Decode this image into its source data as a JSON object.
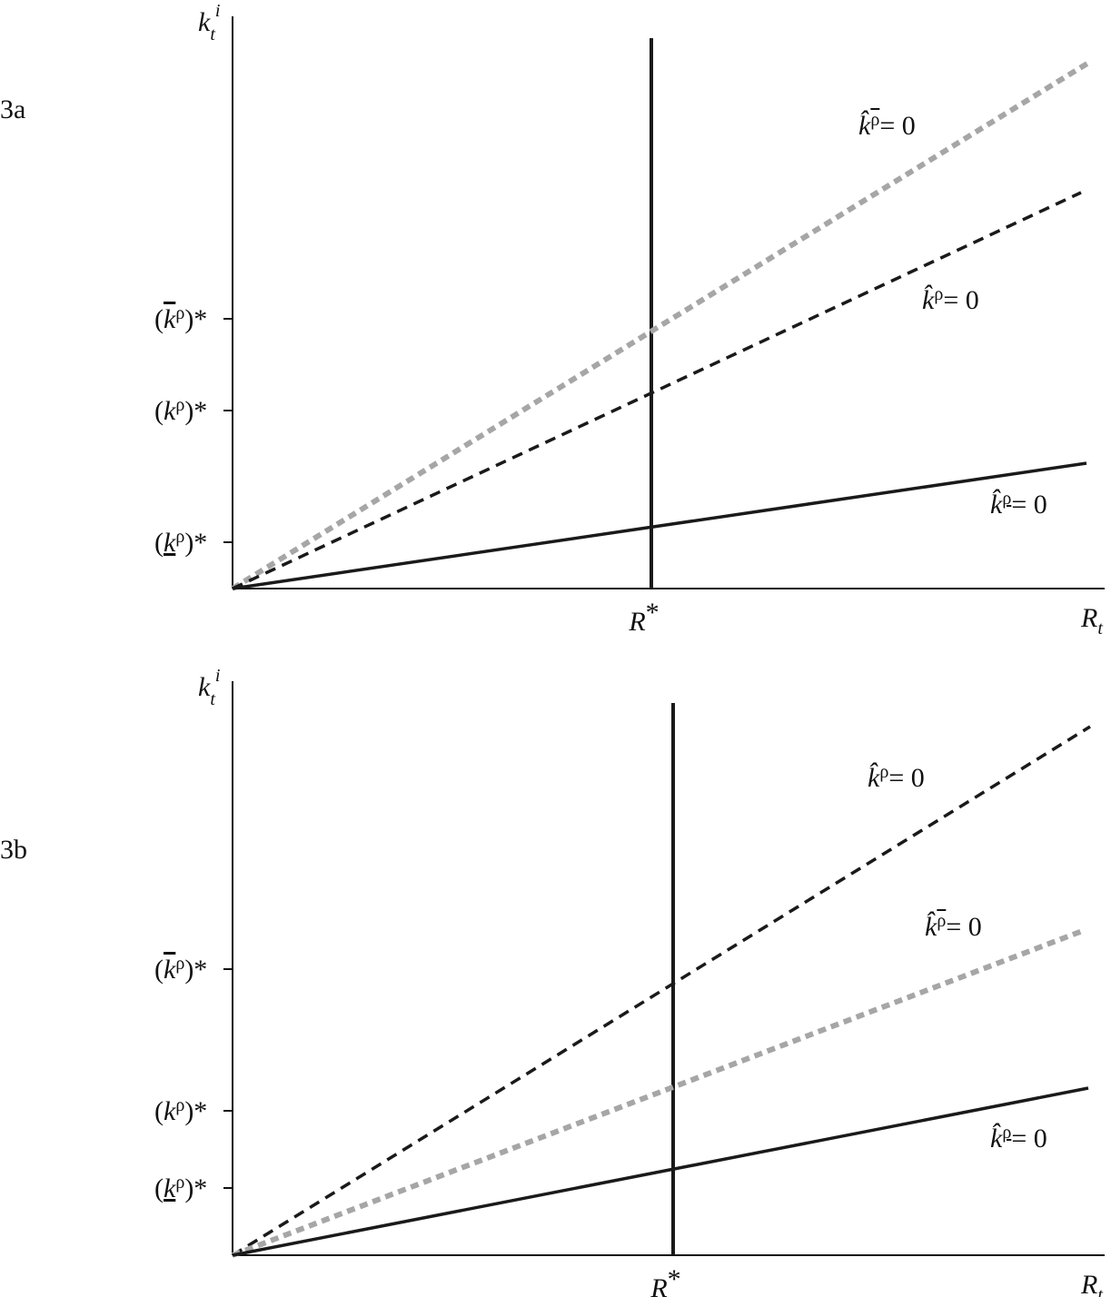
{
  "panels": [
    {
      "label": "3a",
      "y_axis_label": {
        "base": "k",
        "sub": "t",
        "sup": "i"
      },
      "x_axis_label": {
        "base": "R",
        "sub": "t"
      },
      "r_star": {
        "base": "R",
        "sup": "*"
      },
      "tick_labels": [
        {
          "open": "(",
          "base": "k",
          "sup": "ρ",
          "close": ")*"
        },
        {
          "open": "(",
          "base": "k",
          "sup": "ρ",
          "close": ")*"
        },
        {
          "open": "(",
          "base": "k",
          "sup": "ρ",
          "close": ")*"
        }
      ],
      "curve_labels": [
        {
          "base": "k̂",
          "sup": "ρ",
          "eq": "= 0"
        },
        {
          "base": "k̂",
          "sup": "ρ",
          "eq": "= 0"
        },
        {
          "base": "k̂",
          "sup": "ρ",
          "eq": "= 0"
        }
      ]
    },
    {
      "label": "3b",
      "y_axis_label": {
        "base": "k",
        "sub": "t",
        "sup": "i"
      },
      "x_axis_label": {
        "base": "R",
        "sub": "t"
      },
      "r_star": {
        "base": "R",
        "sup": "*"
      },
      "tick_labels": [
        {
          "open": "(",
          "base": "k",
          "sup": "ρ",
          "close": ")*"
        },
        {
          "open": "(",
          "base": "k",
          "sup": "ρ",
          "close": ")*"
        },
        {
          "open": "(",
          "base": "k",
          "sup": "ρ",
          "close": ")*"
        }
      ],
      "curve_labels": [
        {
          "base": "k̂",
          "sup": "ρ",
          "eq": "= 0"
        },
        {
          "base": "k̂",
          "sup": "ρ",
          "eq": "= 0"
        },
        {
          "base": "k̂",
          "sup": "ρ",
          "eq": "= 0"
        }
      ]
    }
  ]
}
